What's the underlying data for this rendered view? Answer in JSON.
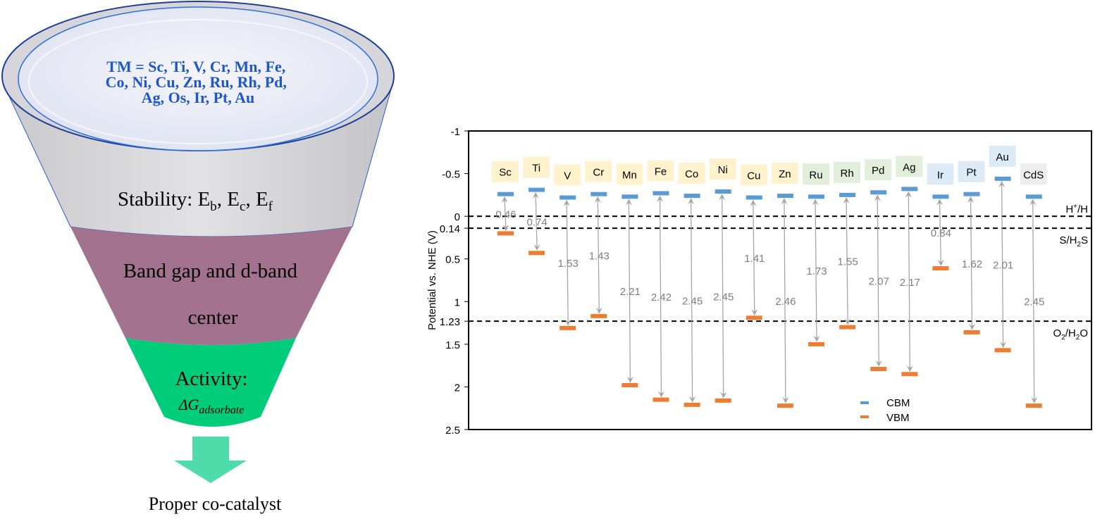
{
  "funnel": {
    "tm_lines": [
      "TM = Sc, Ti, V, Cr, Mn, Fe,",
      "Co, Ni, Cu, Zn, Ru, Rh, Pd,",
      "Ag, Os, Ir, Pt, Au"
    ],
    "stability": {
      "prefix": "Stability: E",
      "sub1": "b",
      "mid1": ", E",
      "sub2": "c",
      "mid2": ", E",
      "sub3": "f"
    },
    "band_lines": [
      "Band gap and d-band",
      "center"
    ],
    "activity_label": "Activity:",
    "activity_delta": "ΔG",
    "activity_sub": "adsorbate",
    "output_label": "Proper co-catalyst",
    "colors": {
      "top": "#d9d9dc",
      "middle": "#a3728e",
      "bottom": "#00cc7a",
      "arrow": "#4fdcaa",
      "text_blue": "#1f56c8"
    }
  },
  "chart_data": {
    "type": "scatter",
    "title": "",
    "xlabel": "",
    "ylabel": "Potential vs. NHE (V)",
    "ylim": [
      -1,
      2.5
    ],
    "y_inverted": true,
    "yticks": [
      "-1",
      "-0.5",
      "0",
      "0.14",
      "0.5",
      "1",
      "1.23",
      "1.5",
      "2",
      "2.5"
    ],
    "ytick_values": [
      -1,
      -0.5,
      0,
      0.14,
      0.5,
      1,
      1.23,
      1.5,
      2,
      2.5
    ],
    "categories": [
      "Sc",
      "Ti",
      "V",
      "Cr",
      "Mn",
      "Fe",
      "Co",
      "Ni",
      "Cu",
      "Zn",
      "Ru",
      "Rh",
      "Pd",
      "Ag",
      "Ir",
      "Pt",
      "Au",
      "CdS"
    ],
    "label_groups": [
      "yellow",
      "yellow",
      "yellow",
      "yellow",
      "yellow",
      "yellow",
      "yellow",
      "yellow",
      "yellow",
      "yellow",
      "green",
      "green",
      "green",
      "green",
      "blue",
      "blue",
      "blue",
      "gray"
    ],
    "series": [
      {
        "name": "CBM",
        "color": "#5b9bd5",
        "values": [
          -0.26,
          -0.31,
          -0.22,
          -0.26,
          -0.23,
          -0.27,
          -0.24,
          -0.29,
          -0.22,
          -0.24,
          -0.23,
          -0.25,
          -0.28,
          -0.32,
          -0.23,
          -0.26,
          -0.44,
          -0.23
        ]
      },
      {
        "name": "VBM",
        "color": "#ed7d31",
        "values": [
          0.2,
          0.43,
          1.31,
          1.17,
          1.98,
          2.15,
          2.21,
          2.16,
          1.19,
          2.22,
          1.5,
          1.3,
          1.79,
          1.85,
          0.61,
          1.36,
          1.57,
          2.22
        ]
      }
    ],
    "band_gaps": [
      "0.46",
      "0.74",
      "1.53",
      "1.43",
      "2.21",
      "2.42",
      "2.45",
      "2.45",
      "1.41",
      "2.46",
      "1.73",
      "1.55",
      "2.07",
      "2.17",
      "0.84",
      "1.62",
      "2.01",
      "2.45"
    ],
    "reference_lines": [
      {
        "value": 0,
        "label": "H",
        "sup": "+",
        "label_end": "/H"
      },
      {
        "value": 0.14,
        "label": "S/H",
        "sub": "2",
        "label_end": "S"
      },
      {
        "value": 1.23,
        "label": "O",
        "sub": "2",
        "label_mid": "/H",
        "sub2": "2",
        "label_end": "O"
      }
    ],
    "legend": {
      "position": "bottom-center",
      "entries": [
        "CBM",
        "VBM"
      ]
    },
    "label_colors": {
      "yellow": "#fff2cc",
      "green": "#e2efda",
      "blue": "#ddebf7",
      "gray": "#ededed"
    },
    "arrow_color": "#a6a6a6",
    "gap_label_color": "#7f7f7f"
  }
}
